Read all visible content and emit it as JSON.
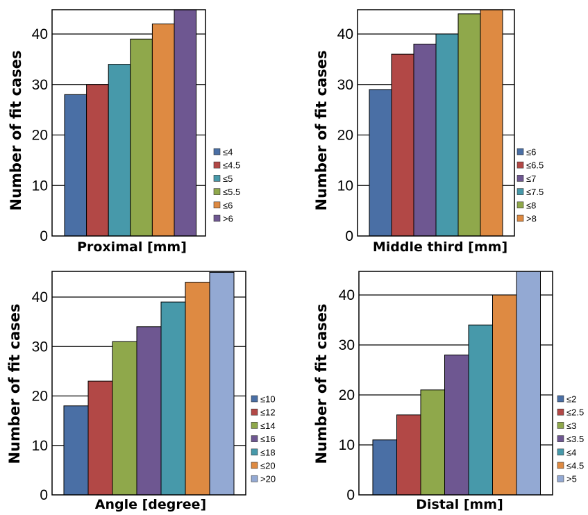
{
  "colors": {
    "blue": "#4a6fa5",
    "red": "#b24846",
    "teal": "#4799aa",
    "green": "#8fa84b",
    "orange": "#de8a42",
    "purple": "#6e5791",
    "lightblue": "#93a9d3"
  },
  "chart_data": [
    {
      "type": "bar",
      "ylabel": "Number of fit cases",
      "xlabel": "Proximal [mm]",
      "ylim": [
        0,
        45
      ],
      "yticks": [
        0,
        10,
        20,
        30,
        40
      ],
      "grid": true,
      "legend_position": "bottom-right",
      "series": [
        {
          "name": "≤4",
          "value": 28,
          "color": "blue"
        },
        {
          "name": "≤4.5",
          "value": 30,
          "color": "red"
        },
        {
          "name": "≤5",
          "value": 34,
          "color": "teal"
        },
        {
          "name": "≤5.5",
          "value": 39,
          "color": "green"
        },
        {
          "name": "≤6",
          "value": 42,
          "color": "orange"
        },
        {
          "name": ">6",
          "value": 45,
          "color": "purple"
        }
      ]
    },
    {
      "type": "bar",
      "ylabel": "Number of fit cases",
      "xlabel": "Middle third [mm]",
      "ylim": [
        0,
        45
      ],
      "yticks": [
        0,
        10,
        20,
        30,
        40
      ],
      "grid": true,
      "legend_position": "bottom-right",
      "series": [
        {
          "name": "≤6",
          "value": 29,
          "color": "blue"
        },
        {
          "name": "≤6.5",
          "value": 36,
          "color": "red"
        },
        {
          "name": "≤7",
          "value": 38,
          "color": "purple"
        },
        {
          "name": "≤7.5",
          "value": 40,
          "color": "teal"
        },
        {
          "name": "≤8",
          "value": 44,
          "color": "green"
        },
        {
          "name": ">8",
          "value": 45,
          "color": "orange"
        }
      ]
    },
    {
      "type": "bar",
      "ylabel": "Number of fit cases",
      "xlabel": "Angle [degree]",
      "ylim": [
        0,
        45
      ],
      "yticks": [
        0,
        10,
        20,
        30,
        40
      ],
      "grid": true,
      "legend_position": "bottom-right",
      "series": [
        {
          "name": "≤10",
          "value": 18,
          "color": "blue"
        },
        {
          "name": "≤12",
          "value": 23,
          "color": "red"
        },
        {
          "name": "≤14",
          "value": 31,
          "color": "green"
        },
        {
          "name": "≤16",
          "value": 34,
          "color": "purple"
        },
        {
          "name": "≤18",
          "value": 39,
          "color": "teal"
        },
        {
          "name": "≤20",
          "value": 43,
          "color": "orange"
        },
        {
          "name": ">20",
          "value": 45,
          "color": "lightblue"
        }
      ]
    },
    {
      "type": "bar",
      "ylabel": "Number of fit cases",
      "xlabel": "Distal [mm]",
      "ylim": [
        0,
        45
      ],
      "yticks": [
        0,
        10,
        20,
        30,
        40
      ],
      "grid": true,
      "legend_position": "bottom-right",
      "series": [
        {
          "name": "≤2",
          "value": 11,
          "color": "blue"
        },
        {
          "name": "≤2.5",
          "value": 16,
          "color": "red"
        },
        {
          "name": "≤3",
          "value": 21,
          "color": "green"
        },
        {
          "name": "≤3.5",
          "value": 28,
          "color": "purple"
        },
        {
          "name": "≤4",
          "value": 34,
          "color": "teal"
        },
        {
          "name": "≤4.5",
          "value": 40,
          "color": "orange"
        },
        {
          "name": ">5",
          "value": 45,
          "color": "lightblue"
        }
      ]
    }
  ]
}
